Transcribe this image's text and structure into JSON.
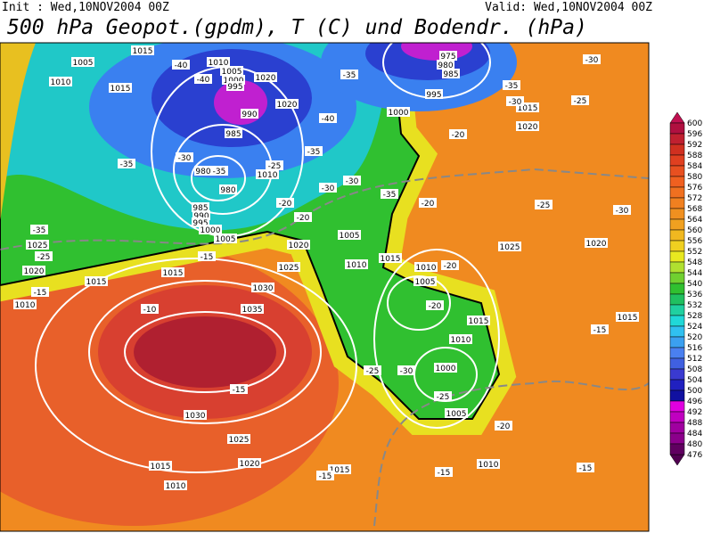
{
  "header": {
    "init": "Init : Wed,10NOV2004 00Z",
    "valid": "Valid: Wed,10NOV2004 00Z",
    "title": "500 hPa Geopot.(gpdm), T (C) und Bodendr. (hPa)"
  },
  "colorbar": {
    "labels": [
      "600",
      "596",
      "592",
      "588",
      "584",
      "580",
      "576",
      "572",
      "568",
      "564",
      "560",
      "556",
      "552",
      "548",
      "544",
      "540",
      "536",
      "532",
      "528",
      "524",
      "520",
      "516",
      "512",
      "508",
      "504",
      "500",
      "496",
      "492",
      "488",
      "484",
      "480",
      "476"
    ],
    "colors": [
      "#b01040",
      "#c02030",
      "#d03020",
      "#e04020",
      "#e85020",
      "#f06020",
      "#f07020",
      "#f08020",
      "#f09020",
      "#f0a020",
      "#f0b820",
      "#f0d020",
      "#e8e820",
      "#b0e030",
      "#70d030",
      "#30c030",
      "#20c060",
      "#20d0a0",
      "#20d8d8",
      "#30c0f0",
      "#3ba0f0",
      "#4a80f0",
      "#4060e0",
      "#3a3ad0",
      "#2020c0",
      "#1010a0",
      "#e000e0",
      "#c000c0",
      "#a000a0",
      "#8b008b",
      "#600060"
    ]
  },
  "map": {
    "contour_labels": [
      "1005",
      "1010",
      "1015",
      "1015",
      "1010",
      "1005",
      "1000",
      "995",
      "990",
      "985",
      "980",
      "980",
      "985",
      "990",
      "995",
      "1000",
      "1005",
      "1010",
      "1020",
      "1020",
      "975",
      "980",
      "985",
      "995",
      "1000",
      "1015",
      "1020",
      "1025",
      "1020",
      "1015",
      "1020",
      "1015",
      "1025",
      "1030",
      "1035",
      "1010",
      "1005",
      "1015",
      "1010",
      "1005",
      "1015",
      "1010",
      "1000",
      "1005",
      "1030",
      "1025",
      "1020",
      "1015",
      "1010",
      "1015",
      "1010",
      "1010",
      "1015",
      "1020",
      "1025",
      "-40",
      "-40",
      "-35",
      "-35",
      "-30",
      "-30",
      "-25",
      "-20",
      "-40",
      "-35",
      "-30",
      "-35",
      "-25",
      "-20",
      "-30",
      "-30",
      "-35",
      "-35",
      "-35",
      "-25",
      "-15",
      "-10",
      "-15",
      "-15",
      "-20",
      "-25",
      "-30",
      "-20",
      "-20",
      "-25",
      "-30",
      "-25",
      "-20",
      "-15",
      "-15",
      "-15",
      "-15",
      "-20"
    ]
  }
}
